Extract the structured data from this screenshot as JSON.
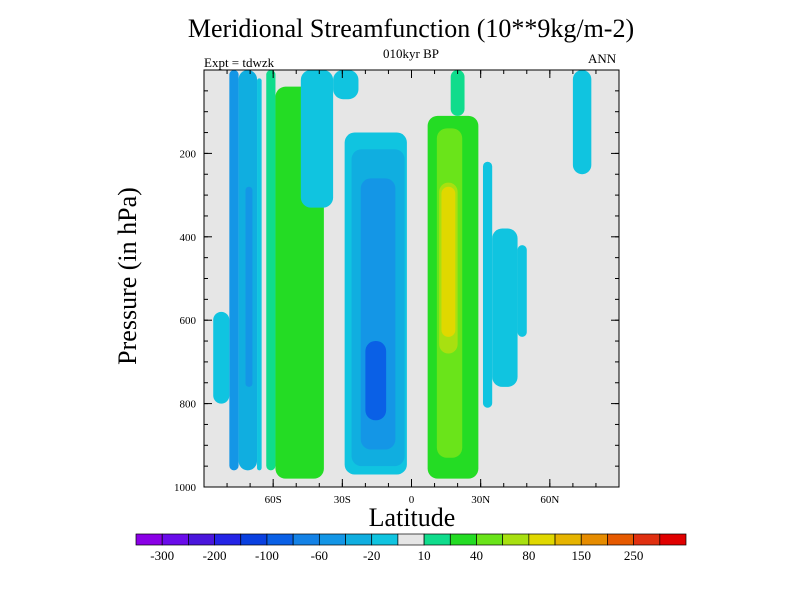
{
  "chart_data": {
    "type": "heatmap",
    "title": "Meridional Streamfunction (10**9kg/m-2)",
    "subtitle": "010kyr BP",
    "left_label": "Expt = tdwzk",
    "right_label": "ANN",
    "xlabel": "Latitude",
    "ylabel": "Pressure (in hPa)",
    "x_ticks": [
      {
        "value": -60,
        "label": "60S"
      },
      {
        "value": -30,
        "label": "30S"
      },
      {
        "value": 0,
        "label": "0"
      },
      {
        "value": 30,
        "label": "30N"
      },
      {
        "value": 60,
        "label": "60N"
      }
    ],
    "y_ticks": [
      {
        "value": 200,
        "label": "200"
      },
      {
        "value": 400,
        "label": "400"
      },
      {
        "value": 600,
        "label": "600"
      },
      {
        "value": 800,
        "label": "800"
      },
      {
        "value": 1000,
        "label": "1000"
      }
    ],
    "xlim": [
      -90,
      90
    ],
    "ylim": [
      1000,
      0
    ],
    "y_inverted": true,
    "background_color": "#e6e6e6",
    "levels": [
      -300,
      -200,
      -100,
      -60,
      -20,
      10,
      40,
      80,
      150,
      250
    ],
    "colorbar": {
      "colors": [
        "#8a00e6",
        "#6a0cea",
        "#4a16dc",
        "#2424e6",
        "#0a40e0",
        "#0a60e6",
        "#1482e6",
        "#1496e6",
        "#10aee0",
        "#10c4e0",
        "#e6e6e6",
        "#10dc8c",
        "#24dc24",
        "#6ae41a",
        "#a8e010",
        "#e0d800",
        "#e6b400",
        "#e68c00",
        "#e65a00",
        "#e03010",
        "#e00000"
      ],
      "labels": [
        "-300",
        "-200",
        "-100",
        "-60",
        "-20",
        "10",
        "40",
        "80",
        "150",
        "250"
      ]
    },
    "cells": [
      {
        "x": [
          -79,
          -75
        ],
        "p": [
          0,
          960
        ],
        "v": -60
      },
      {
        "x": [
          -75,
          -67
        ],
        "p": [
          0,
          960
        ],
        "v": -40
      },
      {
        "x": [
          -67,
          -65
        ],
        "p": [
          20,
          960
        ],
        "v": -20
      },
      {
        "x": [
          -86,
          -79
        ],
        "p": [
          580,
          800
        ],
        "v": -20
      },
      {
        "x": [
          -72,
          -69
        ],
        "p": [
          280,
          760
        ],
        "v": -60
      },
      {
        "x": [
          -63,
          -59
        ],
        "p": [
          0,
          960
        ],
        "v": 20
      },
      {
        "x": [
          -59,
          -38
        ],
        "p": [
          40,
          980
        ],
        "v": 40
      },
      {
        "x": [
          -55,
          -44
        ],
        "p": [
          320,
          940
        ],
        "v": 40
      },
      {
        "x": [
          -48,
          -34
        ],
        "p": [
          0,
          330
        ],
        "v": -20
      },
      {
        "x": [
          -34,
          -23
        ],
        "p": [
          0,
          70
        ],
        "v": -20
      },
      {
        "x": [
          -29,
          -2
        ],
        "p": [
          150,
          970
        ],
        "v": -20
      },
      {
        "x": [
          -26,
          -3
        ],
        "p": [
          190,
          950
        ],
        "v": -40
      },
      {
        "x": [
          -22,
          -7
        ],
        "p": [
          260,
          910
        ],
        "v": -60
      },
      {
        "x": [
          -20,
          -11
        ],
        "p": [
          650,
          840
        ],
        "v": -100
      },
      {
        "x": [
          7,
          29
        ],
        "p": [
          110,
          980
        ],
        "v": 40
      },
      {
        "x": [
          11,
          22
        ],
        "p": [
          140,
          930
        ],
        "v": 60
      },
      {
        "x": [
          12,
          20
        ],
        "p": [
          270,
          680
        ],
        "v": 80
      },
      {
        "x": [
          13,
          19
        ],
        "p": [
          280,
          640
        ],
        "v": 100
      },
      {
        "x": [
          17,
          23
        ],
        "p": [
          0,
          110
        ],
        "v": 20
      },
      {
        "x": [
          31,
          35
        ],
        "p": [
          220,
          810
        ],
        "v": -20
      },
      {
        "x": [
          35,
          46
        ],
        "p": [
          380,
          760
        ],
        "v": -20
      },
      {
        "x": [
          46,
          50
        ],
        "p": [
          420,
          640
        ],
        "v": -20
      },
      {
        "x": [
          70,
          78
        ],
        "p": [
          0,
          250
        ],
        "v": -20
      }
    ]
  }
}
